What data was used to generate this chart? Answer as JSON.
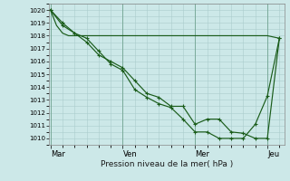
{
  "xlabel": "Pression niveau de la mer( hPa )",
  "bg_color": "#cce8e8",
  "grid_color": "#aacccc",
  "line_color": "#1a5c1a",
  "ylim": [
    1009.5,
    1020.5
  ],
  "yticks": [
    1010,
    1011,
    1012,
    1013,
    1014,
    1015,
    1016,
    1017,
    1018,
    1019,
    1020
  ],
  "day_labels": [
    "Mar",
    "Ven",
    "Mer",
    "Jeu"
  ],
  "day_positions": [
    0,
    3,
    6,
    9
  ],
  "xlim": [
    -0.05,
    9.7
  ],
  "line1_x": [
    0,
    0.25,
    0.5,
    0.75,
    1.0,
    1.5,
    2.0,
    2.5,
    3.0,
    3.5,
    4.0,
    4.5,
    5.0,
    5.5,
    6.0,
    6.5,
    7.0,
    7.5,
    8.0,
    8.5,
    9.0,
    9.5
  ],
  "line1_y": [
    1020,
    1018.8,
    1018.2,
    1018.0,
    1018.0,
    1018.0,
    1018.0,
    1018.0,
    1018.0,
    1018.0,
    1018.0,
    1018.0,
    1018.0,
    1018.0,
    1018.0,
    1018.0,
    1018.0,
    1018.0,
    1018.0,
    1018.0,
    1018.0,
    1017.8
  ],
  "line2_x": [
    0,
    0.5,
    1.0,
    1.5,
    2.0,
    2.5,
    3.0,
    3.5,
    4.0,
    4.5,
    5.0,
    5.5,
    6.0,
    6.5,
    7.0,
    7.5,
    8.0,
    8.5,
    9.0,
    9.5
  ],
  "line2_y": [
    1020,
    1019,
    1018.2,
    1017.5,
    1016.5,
    1016.0,
    1015.5,
    1014.5,
    1013.5,
    1013.2,
    1012.5,
    1012.5,
    1011.1,
    1011.5,
    1011.5,
    1010.5,
    1010.4,
    1010.0,
    1010.0,
    1017.8
  ],
  "line3_x": [
    0,
    0.5,
    1.0,
    1.5,
    2.0,
    2.5,
    3.0,
    3.5,
    4.0,
    4.5,
    5.0,
    5.5,
    6.0,
    6.5,
    7.0,
    7.5,
    8.0,
    8.5,
    9.0,
    9.5
  ],
  "line3_y": [
    1020,
    1018.8,
    1018.2,
    1017.8,
    1016.8,
    1015.8,
    1015.3,
    1013.8,
    1013.2,
    1012.7,
    1012.4,
    1011.5,
    1010.5,
    1010.5,
    1010.0,
    1010.0,
    1010.0,
    1011.1,
    1013.3,
    1017.8
  ]
}
